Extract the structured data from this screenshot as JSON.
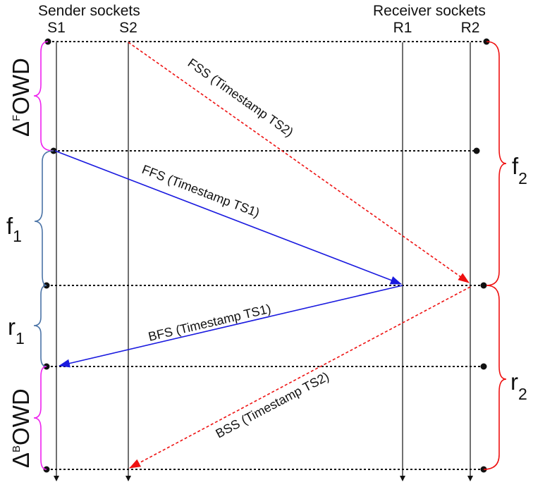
{
  "headers": {
    "sender": "Sender sockets",
    "receiver": "Receiver sockets"
  },
  "sockets": [
    "S1",
    "S2",
    "R1",
    "R2"
  ],
  "messages": {
    "fss": "FSS (Timestamp TS2)",
    "ffs": "FFS  (Timestamp TS1)",
    "bfs": "BFS (Timestamp TS1)",
    "bss": "BSS (Timestamp TS2)"
  },
  "left_labels": {
    "delta_f": {
      "prefix": "Δ",
      "sup": "F",
      "suffix": "OWD"
    },
    "f1": {
      "base": "f",
      "sub": "1"
    },
    "r1": {
      "base": "r",
      "sub": "1"
    },
    "delta_b": {
      "prefix": "Δ",
      "sup": "B",
      "suffix": "OWD"
    }
  },
  "right_labels": {
    "f2": {
      "base": "f",
      "sub": "2"
    },
    "r2": {
      "base": "r",
      "sub": "2"
    }
  },
  "colors": {
    "first_socket": "#1a1adf",
    "second_socket": "#ee1111",
    "brace_delta": "#ee22ee",
    "brace_left": "#4a73a6",
    "brace_right": "#ee1111",
    "line": "#111111"
  }
}
